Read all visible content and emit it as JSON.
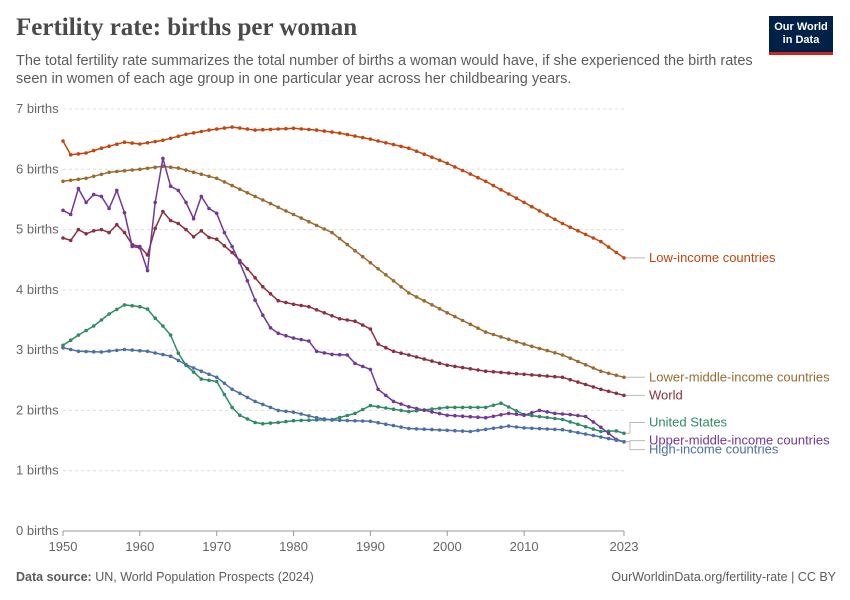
{
  "header": {
    "title": "Fertility rate: births per woman",
    "subtitle": "The total fertility rate summarizes the total number of births a woman would have, if she experienced the birth rates seen in women of each age group in one particular year across her childbearing years.",
    "logo_line1": "Our World",
    "logo_line2": "in Data"
  },
  "footer": {
    "source_label": "Data source:",
    "source_text": "UN, World Population Prospects (2024)",
    "url_text": "OurWorldinData.org/fertility-rate | CC BY"
  },
  "colors": {
    "low_income": "#c4460f",
    "lower_middle_income": "#9a6b30",
    "world": "#8c2f3e",
    "united_states": "#2e8b62",
    "upper_middle_income": "#71389a",
    "high_income": "#4d6fa6",
    "grid": "#dddddd"
  },
  "chart_data": {
    "type": "line",
    "ylim": [
      0,
      7
    ],
    "xlim": [
      1950,
      2023
    ],
    "grid": true,
    "y_ticks": [
      {
        "value": 0,
        "label": "0 births"
      },
      {
        "value": 1,
        "label": "1 births"
      },
      {
        "value": 2,
        "label": "2 births"
      },
      {
        "value": 3,
        "label": "3 births"
      },
      {
        "value": 4,
        "label": "4 births"
      },
      {
        "value": 5,
        "label": "5 births"
      },
      {
        "value": 6,
        "label": "6 births"
      },
      {
        "value": 7,
        "label": "7 births"
      }
    ],
    "x_ticks": [
      {
        "value": 1950,
        "label": "1950"
      },
      {
        "value": 1960,
        "label": "1960"
      },
      {
        "value": 1970,
        "label": "1970"
      },
      {
        "value": 1980,
        "label": "1980"
      },
      {
        "value": 1990,
        "label": "1990"
      },
      {
        "value": 2000,
        "label": "2000"
      },
      {
        "value": 2010,
        "label": "2010"
      },
      {
        "value": 2023,
        "label": "2023"
      }
    ],
    "series": [
      {
        "name": "Low-income countries",
        "color_key": "low_income",
        "knots": [
          [
            1950,
            6.47
          ],
          [
            1951,
            6.24
          ],
          [
            1953,
            6.27
          ],
          [
            1955,
            6.35
          ],
          [
            1958,
            6.45
          ],
          [
            1960,
            6.42
          ],
          [
            1963,
            6.48
          ],
          [
            1966,
            6.58
          ],
          [
            1969,
            6.65
          ],
          [
            1972,
            6.7
          ],
          [
            1975,
            6.65
          ],
          [
            1980,
            6.68
          ],
          [
            1983,
            6.65
          ],
          [
            1986,
            6.6
          ],
          [
            1990,
            6.5
          ],
          [
            1995,
            6.35
          ],
          [
            2000,
            6.1
          ],
          [
            2005,
            5.8
          ],
          [
            2010,
            5.45
          ],
          [
            2015,
            5.1
          ],
          [
            2020,
            4.8
          ],
          [
            2023,
            4.53
          ]
        ]
      },
      {
        "name": "Lower-middle-income countries",
        "color_key": "lower_middle_income",
        "knots": [
          [
            1950,
            5.8
          ],
          [
            1953,
            5.85
          ],
          [
            1956,
            5.95
          ],
          [
            1960,
            6.0
          ],
          [
            1963,
            6.05
          ],
          [
            1965,
            6.02
          ],
          [
            1970,
            5.85
          ],
          [
            1975,
            5.55
          ],
          [
            1980,
            5.25
          ],
          [
            1985,
            4.95
          ],
          [
            1990,
            4.45
          ],
          [
            1995,
            3.95
          ],
          [
            2000,
            3.62
          ],
          [
            2005,
            3.3
          ],
          [
            2010,
            3.1
          ],
          [
            2015,
            2.92
          ],
          [
            2020,
            2.65
          ],
          [
            2023,
            2.55
          ]
        ]
      },
      {
        "name": "World",
        "color_key": "world",
        "knots": [
          [
            1950,
            4.86
          ],
          [
            1951,
            4.82
          ],
          [
            1952,
            5.0
          ],
          [
            1953,
            4.93
          ],
          [
            1954,
            4.98
          ],
          [
            1955,
            5.0
          ],
          [
            1956,
            4.95
          ],
          [
            1957,
            5.08
          ],
          [
            1958,
            4.95
          ],
          [
            1959,
            4.75
          ],
          [
            1960,
            4.72
          ],
          [
            1961,
            4.58
          ],
          [
            1962,
            5.02
          ],
          [
            1963,
            5.3
          ],
          [
            1964,
            5.15
          ],
          [
            1965,
            5.1
          ],
          [
            1966,
            5.0
          ],
          [
            1967,
            4.88
          ],
          [
            1968,
            4.98
          ],
          [
            1969,
            4.87
          ],
          [
            1970,
            4.84
          ],
          [
            1972,
            4.62
          ],
          [
            1974,
            4.35
          ],
          [
            1976,
            4.05
          ],
          [
            1978,
            3.82
          ],
          [
            1980,
            3.76
          ],
          [
            1982,
            3.72
          ],
          [
            1984,
            3.62
          ],
          [
            1986,
            3.52
          ],
          [
            1988,
            3.48
          ],
          [
            1990,
            3.35
          ],
          [
            1991,
            3.1
          ],
          [
            1993,
            2.98
          ],
          [
            1995,
            2.92
          ],
          [
            2000,
            2.75
          ],
          [
            2005,
            2.65
          ],
          [
            2010,
            2.6
          ],
          [
            2015,
            2.55
          ],
          [
            2020,
            2.35
          ],
          [
            2023,
            2.25
          ]
        ]
      },
      {
        "name": "United States",
        "color_key": "united_states",
        "knots": [
          [
            1950,
            3.08
          ],
          [
            1952,
            3.25
          ],
          [
            1954,
            3.4
          ],
          [
            1956,
            3.6
          ],
          [
            1958,
            3.75
          ],
          [
            1960,
            3.72
          ],
          [
            1961,
            3.68
          ],
          [
            1962,
            3.53
          ],
          [
            1963,
            3.4
          ],
          [
            1964,
            3.25
          ],
          [
            1965,
            2.95
          ],
          [
            1966,
            2.75
          ],
          [
            1968,
            2.52
          ],
          [
            1970,
            2.48
          ],
          [
            1972,
            2.05
          ],
          [
            1973,
            1.92
          ],
          [
            1975,
            1.8
          ],
          [
            1976,
            1.78
          ],
          [
            1978,
            1.8
          ],
          [
            1980,
            1.83
          ],
          [
            1985,
            1.85
          ],
          [
            1988,
            1.95
          ],
          [
            1990,
            2.08
          ],
          [
            1995,
            1.98
          ],
          [
            2000,
            2.05
          ],
          [
            2005,
            2.05
          ],
          [
            2007,
            2.12
          ],
          [
            2010,
            1.93
          ],
          [
            2015,
            1.85
          ],
          [
            2020,
            1.65
          ],
          [
            2022,
            1.66
          ],
          [
            2023,
            1.62
          ]
        ]
      },
      {
        "name": "Upper-middle-income countries",
        "color_key": "upper_middle_income",
        "knots": [
          [
            1950,
            5.32
          ],
          [
            1951,
            5.25
          ],
          [
            1952,
            5.68
          ],
          [
            1953,
            5.45
          ],
          [
            1954,
            5.58
          ],
          [
            1955,
            5.55
          ],
          [
            1956,
            5.35
          ],
          [
            1957,
            5.65
          ],
          [
            1958,
            5.28
          ],
          [
            1959,
            4.72
          ],
          [
            1960,
            4.7
          ],
          [
            1961,
            4.32
          ],
          [
            1962,
            5.45
          ],
          [
            1963,
            6.18
          ],
          [
            1964,
            5.72
          ],
          [
            1965,
            5.65
          ],
          [
            1966,
            5.45
          ],
          [
            1967,
            5.18
          ],
          [
            1968,
            5.55
          ],
          [
            1969,
            5.35
          ],
          [
            1970,
            5.27
          ],
          [
            1971,
            4.95
          ],
          [
            1972,
            4.72
          ],
          [
            1973,
            4.45
          ],
          [
            1974,
            4.15
          ],
          [
            1975,
            3.83
          ],
          [
            1976,
            3.58
          ],
          [
            1977,
            3.37
          ],
          [
            1978,
            3.28
          ],
          [
            1980,
            3.2
          ],
          [
            1982,
            3.15
          ],
          [
            1983,
            2.98
          ],
          [
            1985,
            2.93
          ],
          [
            1987,
            2.92
          ],
          [
            1988,
            2.78
          ],
          [
            1990,
            2.68
          ],
          [
            1991,
            2.35
          ],
          [
            1993,
            2.15
          ],
          [
            1995,
            2.06
          ],
          [
            2000,
            1.92
          ],
          [
            2005,
            1.88
          ],
          [
            2008,
            1.95
          ],
          [
            2010,
            1.92
          ],
          [
            2012,
            2.0
          ],
          [
            2014,
            1.95
          ],
          [
            2016,
            1.93
          ],
          [
            2018,
            1.9
          ],
          [
            2020,
            1.72
          ],
          [
            2022,
            1.52
          ],
          [
            2023,
            1.48
          ]
        ]
      },
      {
        "name": "High-income countries",
        "color_key": "high_income",
        "knots": [
          [
            1950,
            3.04
          ],
          [
            1952,
            2.98
          ],
          [
            1955,
            2.97
          ],
          [
            1958,
            3.01
          ],
          [
            1961,
            2.98
          ],
          [
            1964,
            2.9
          ],
          [
            1966,
            2.76
          ],
          [
            1968,
            2.65
          ],
          [
            1970,
            2.55
          ],
          [
            1972,
            2.35
          ],
          [
            1975,
            2.15
          ],
          [
            1978,
            2.0
          ],
          [
            1980,
            1.97
          ],
          [
            1983,
            1.88
          ],
          [
            1985,
            1.84
          ],
          [
            1990,
            1.82
          ],
          [
            1995,
            1.7
          ],
          [
            2000,
            1.67
          ],
          [
            2003,
            1.65
          ],
          [
            2008,
            1.74
          ],
          [
            2010,
            1.71
          ],
          [
            2015,
            1.68
          ],
          [
            2020,
            1.56
          ],
          [
            2023,
            1.48
          ]
        ]
      }
    ],
    "end_labels": [
      {
        "series": "Low-income countries",
        "text": "Low-income countries",
        "color_key": "low_income",
        "label_value": 4.53
      },
      {
        "series": "Lower-middle-income countries",
        "text": "Lower-middle-income countries",
        "color_key": "lower_middle_income",
        "label_value": 2.55
      },
      {
        "series": "World",
        "text": "World",
        "color_key": "world",
        "label_value": 2.25
      },
      {
        "series": "United States",
        "text": "United States",
        "color_key": "united_states",
        "label_value": 1.8
      },
      {
        "series": "Upper-middle-income countries",
        "text": "Upper-middle-income countries",
        "color_key": "upper_middle_income",
        "label_value": 1.5
      },
      {
        "series": "High-income countries",
        "text": "High-income countries",
        "color_key": "high_income",
        "label_value": 1.35
      }
    ]
  }
}
